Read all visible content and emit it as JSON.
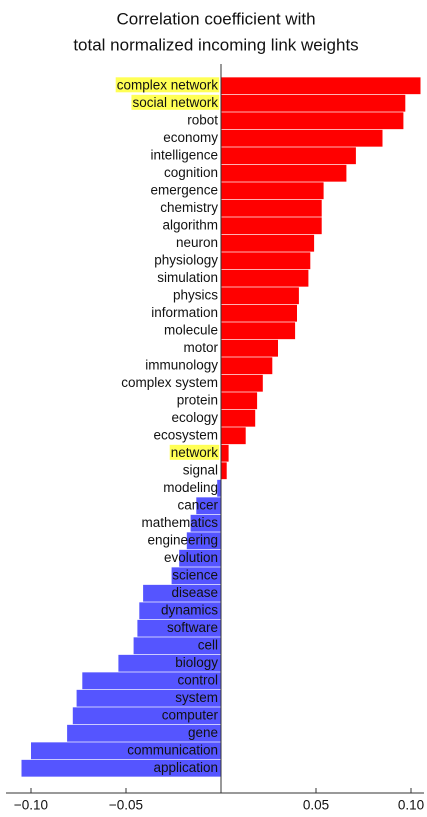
{
  "chart_data": {
    "type": "barh",
    "title": [
      "Correlation coefficient with",
      "total normalized incoming link weights"
    ],
    "categories": [
      "complex network",
      "social network",
      "robot",
      "economy",
      "intelligence",
      "cognition",
      "emergence",
      "chemistry",
      "algorithm",
      "neuron",
      "physiology",
      "simulation",
      "physics",
      "information",
      "molecule",
      "motor",
      "immunology",
      "complex system",
      "protein",
      "ecology",
      "ecosystem",
      "network",
      "signal",
      "modeling",
      "cancer",
      "mathematics",
      "engineering",
      "evolution",
      "science",
      "disease",
      "dynamics",
      "software",
      "cell",
      "biology",
      "control",
      "system",
      "computer",
      "gene",
      "communication",
      "application"
    ],
    "values": [
      0.105,
      0.097,
      0.096,
      0.085,
      0.071,
      0.066,
      0.054,
      0.053,
      0.053,
      0.049,
      0.047,
      0.046,
      0.041,
      0.04,
      0.039,
      0.03,
      0.027,
      0.022,
      0.019,
      0.018,
      0.013,
      0.004,
      0.003,
      -0.002,
      -0.013,
      -0.016,
      -0.018,
      -0.022,
      -0.026,
      -0.041,
      -0.043,
      -0.044,
      -0.046,
      -0.054,
      -0.073,
      -0.076,
      -0.078,
      -0.081,
      -0.1,
      -0.105
    ],
    "positive_color": "#ff0000",
    "negative_color": "#5555ff",
    "highlighted": [
      "complex network",
      "social network",
      "network"
    ],
    "highlight_color": "#ffff55",
    "xlim": [
      -0.11,
      0.105
    ],
    "xticks": [
      {
        "value": -0.1,
        "label": "−0.10"
      },
      {
        "value": -0.05,
        "label": "−0.05"
      },
      0,
      {
        "value": 0.05,
        "label": "0.05"
      },
      {
        "value": 0.1,
        "label": "0.10"
      }
    ],
    "grid": false
  }
}
